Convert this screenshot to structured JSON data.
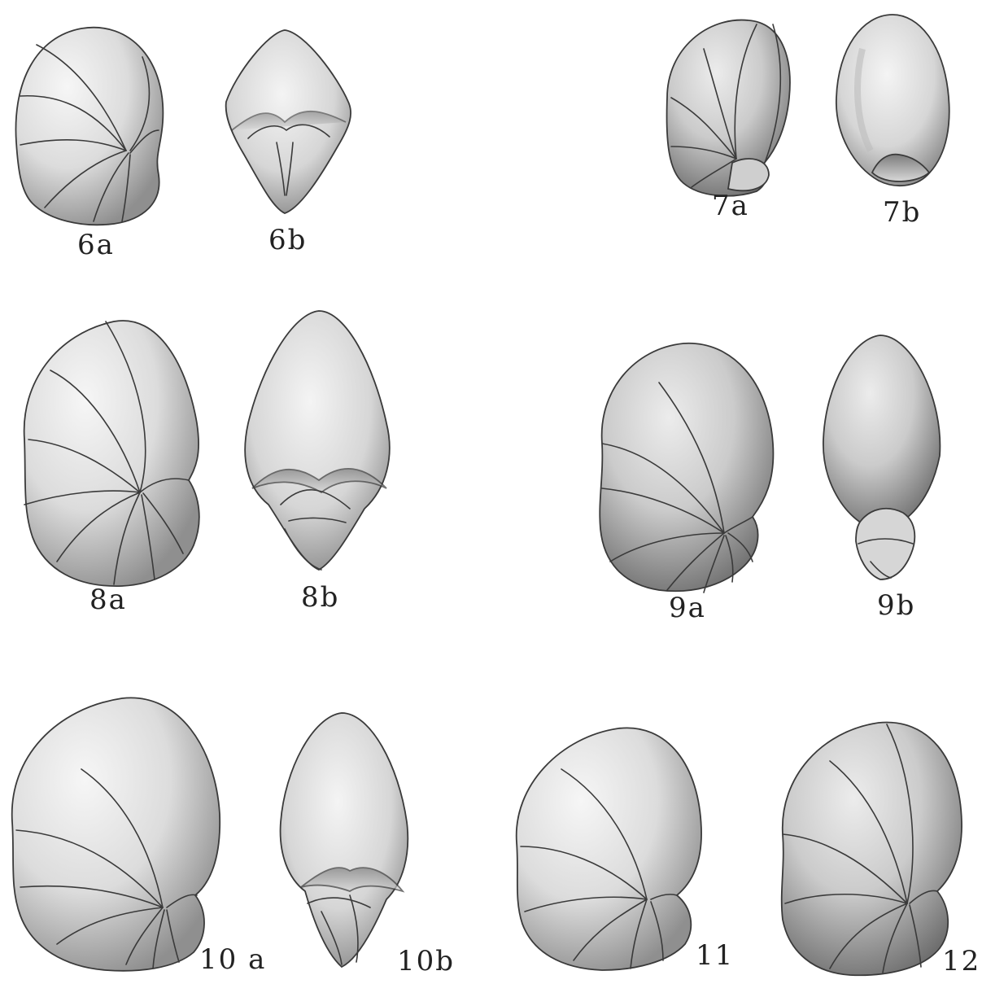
{
  "plate": {
    "figures": [
      {
        "id": "6a",
        "label": "6a",
        "view": "side"
      },
      {
        "id": "6b",
        "label": "6b",
        "view": "apertural"
      },
      {
        "id": "7a",
        "label": "7a",
        "view": "side"
      },
      {
        "id": "7b",
        "label": "7b",
        "view": "apertural"
      },
      {
        "id": "8a",
        "label": "8a",
        "view": "side"
      },
      {
        "id": "8b",
        "label": "8b",
        "view": "apertural"
      },
      {
        "id": "9a",
        "label": "9a",
        "view": "side"
      },
      {
        "id": "9b",
        "label": "9b",
        "view": "apertural"
      },
      {
        "id": "10a",
        "label": "10 a",
        "view": "side"
      },
      {
        "id": "10b",
        "label": "10b",
        "view": "apertural"
      },
      {
        "id": "11",
        "label": "11",
        "view": "side"
      },
      {
        "id": "12",
        "label": "12",
        "view": "side"
      }
    ],
    "colors": {
      "background": "#ffffff",
      "shell_light": "#f2f2f2",
      "shell_mid": "#cfcfcf",
      "shell_dark": "#8a8a8a",
      "line": "#3a3a3a"
    }
  }
}
